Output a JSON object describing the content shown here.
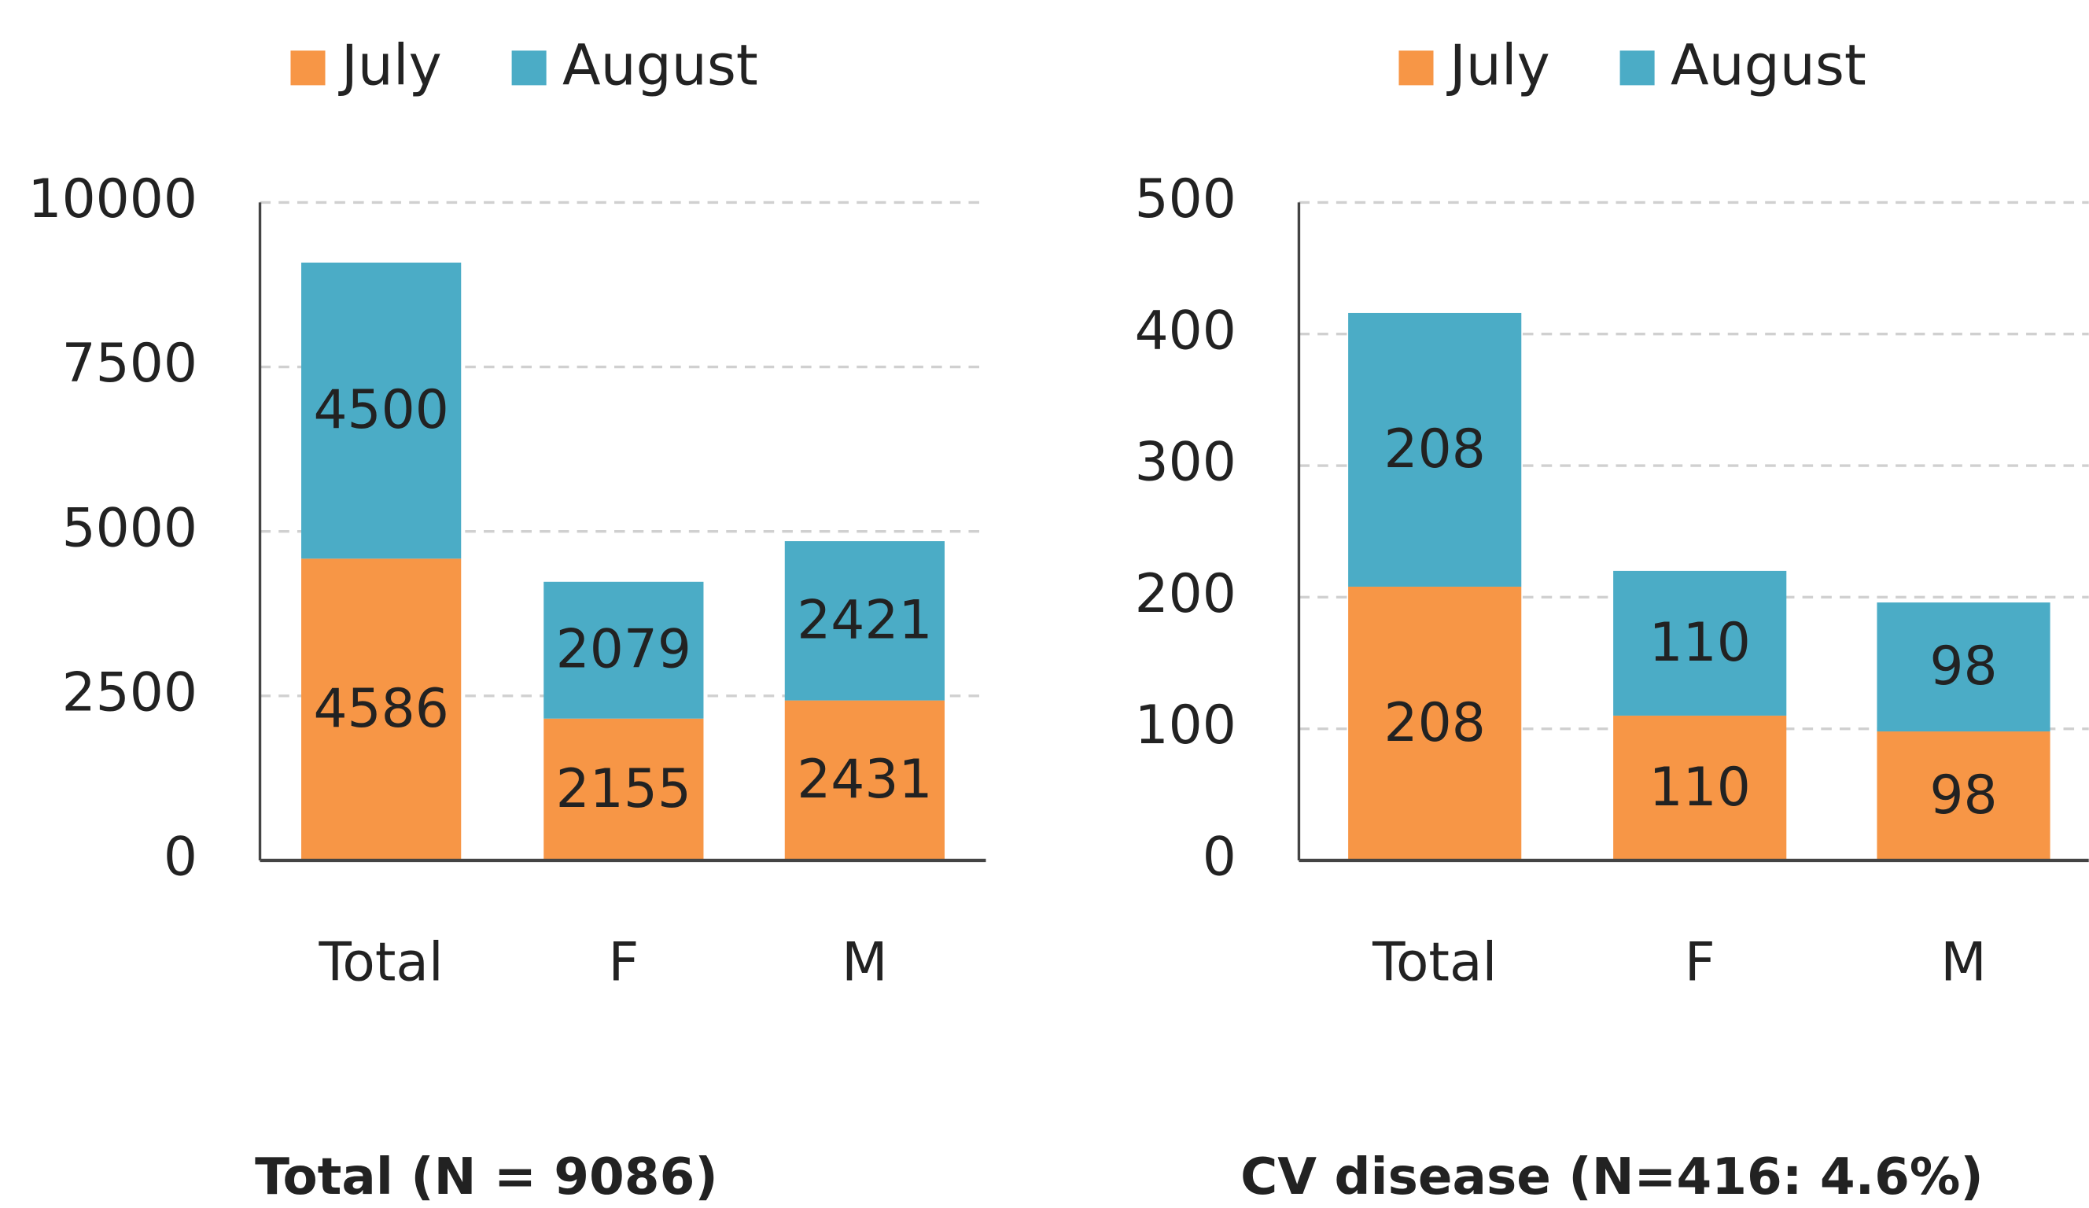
{
  "chart_data": [
    {
      "type": "bar",
      "stacked": true,
      "title": "Total (N = 9086)",
      "categories": [
        "Total",
        "F",
        "M"
      ],
      "series": [
        {
          "name": "July",
          "color": "#f79646",
          "values": [
            4586,
            2155,
            2431
          ]
        },
        {
          "name": "August",
          "color": "#4bacc6",
          "values": [
            4500,
            2079,
            2421
          ]
        }
      ],
      "ylim": [
        0,
        10000
      ],
      "yticks": [
        0,
        2500,
        5000,
        7500,
        10000
      ],
      "grid": true,
      "legend": "top"
    },
    {
      "type": "bar",
      "stacked": true,
      "title": "CV disease (N=416: 4.6%)",
      "categories": [
        "Total",
        "F",
        "M"
      ],
      "series": [
        {
          "name": "July",
          "color": "#f79646",
          "values": [
            208,
            110,
            98
          ]
        },
        {
          "name": "August",
          "color": "#4bacc6",
          "values": [
            208,
            110,
            98
          ]
        }
      ],
      "ylim": [
        0,
        500
      ],
      "yticks": [
        0,
        100,
        200,
        300,
        400,
        500
      ],
      "grid": true,
      "legend": "top"
    }
  ]
}
